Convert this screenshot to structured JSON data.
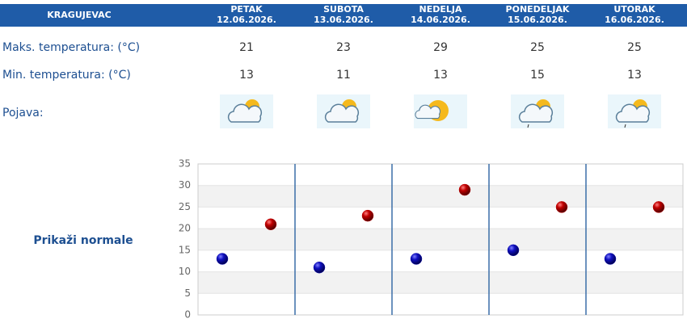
{
  "header": {
    "city": "KRAGUJEVAC"
  },
  "table": {
    "columns": [
      {
        "day": "PETAK",
        "date": "12.06.2026."
      },
      {
        "day": "SUBOTA",
        "date": "13.06.2026."
      },
      {
        "day": "NEDELJA",
        "date": "14.06.2026."
      },
      {
        "day": "PONEDELJAK",
        "date": "15.06.2026."
      },
      {
        "day": "UTORAK",
        "date": "16.06.2026."
      }
    ],
    "rows": [
      {
        "label": "Maks. temperatura: (°C)",
        "values": [
          21,
          23,
          29,
          25,
          25
        ]
      },
      {
        "label": "Min. temperatura: (°C)",
        "values": [
          13,
          11,
          13,
          15,
          13
        ]
      }
    ],
    "icon_row_label": "Pojava:"
  },
  "normals_link": "Prikaži normale",
  "chart_data": {
    "type": "scatter",
    "series": [
      {
        "color": "#1010b0",
        "values": [
          13,
          11,
          13,
          15,
          13
        ]
      },
      {
        "color": "#c00000",
        "values": [
          21,
          23,
          29,
          25,
          25
        ]
      }
    ],
    "ylim": [
      0,
      35
    ],
    "yticks": [
      0,
      5,
      10,
      15,
      20,
      25,
      30,
      35
    ],
    "grid": true
  }
}
